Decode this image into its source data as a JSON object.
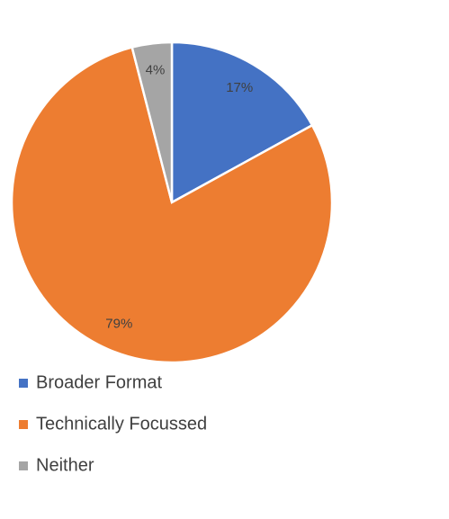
{
  "chart_data": {
    "type": "pie",
    "categories": [
      "Broader Format",
      "Technically Focussed",
      "Neither"
    ],
    "values": [
      17,
      79,
      4
    ],
    "value_labels": [
      "17%",
      "79%",
      "4%"
    ],
    "colors": [
      "#4472c4",
      "#ed7d31",
      "#a5a5a5"
    ]
  }
}
